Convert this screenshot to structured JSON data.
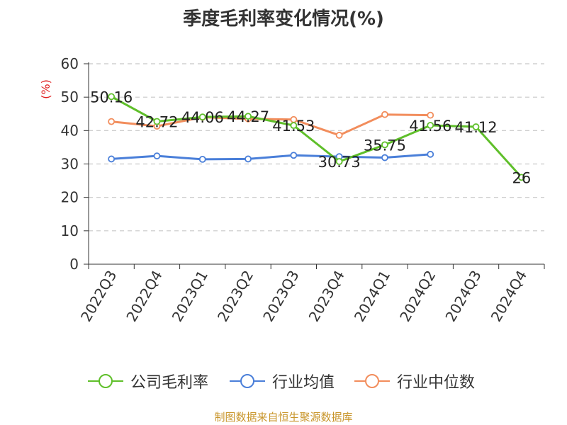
{
  "title": "季度毛利率变化情况(%)",
  "source": "制图数据来自恒生聚源数据库",
  "chart_data": {
    "type": "line",
    "title": "季度毛利率变化情况(%)",
    "ylabel": "(%)",
    "xlabel": "",
    "ylim": [
      0,
      60
    ],
    "yticks": [
      0,
      10,
      20,
      30,
      40,
      50,
      60
    ],
    "grid": "horizontal-dashed",
    "legend_position": "bottom",
    "categories": [
      "2022Q3",
      "2022Q4",
      "2023Q1",
      "2023Q2",
      "2023Q3",
      "2023Q4",
      "2024Q1",
      "2024Q2",
      "2024Q3",
      "2024Q4"
    ],
    "series": [
      {
        "name": "公司毛利率",
        "color": "#5fbf2a",
        "values": [
          50.16,
          42.72,
          44.06,
          44.27,
          41.53,
          30.73,
          35.75,
          41.56,
          41.12,
          26
        ],
        "labels": [
          "50.16",
          "42.72",
          "44.06",
          "44.27",
          "41.53",
          "30.73",
          "35.75",
          "41.56",
          "41.12",
          "26"
        ]
      },
      {
        "name": "行业均值",
        "color": "#4a7fd9",
        "values": [
          31.5,
          32.4,
          31.4,
          31.5,
          32.6,
          32.2,
          31.9,
          32.9,
          null,
          null
        ]
      },
      {
        "name": "行业中位数",
        "color": "#f28d5c",
        "values": [
          42.7,
          41.3,
          44.0,
          43.5,
          43.3,
          38.6,
          44.8,
          44.6,
          null,
          null
        ]
      }
    ]
  }
}
